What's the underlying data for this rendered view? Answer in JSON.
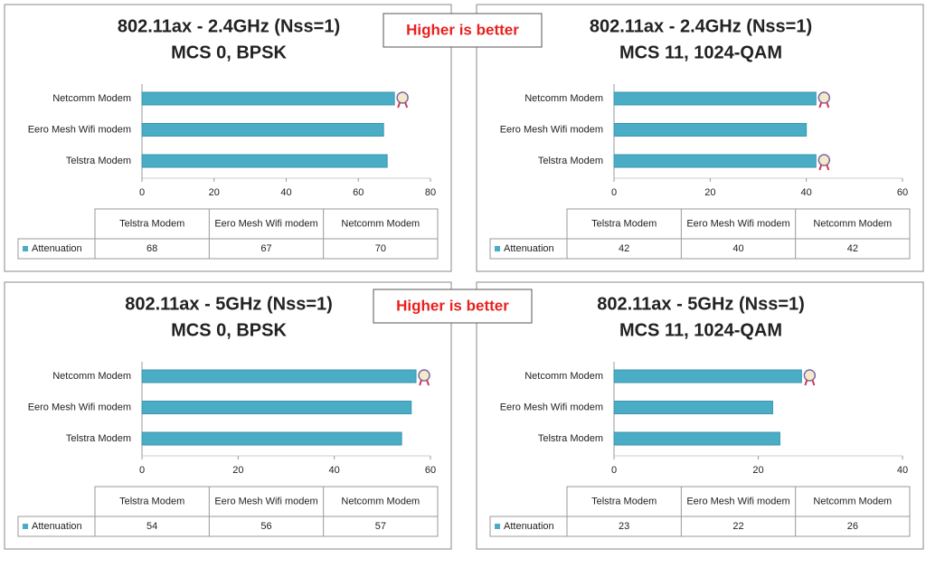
{
  "chart_data": [
    {
      "type": "bar",
      "orientation": "horizontal",
      "title": "802.11ax - 2.4GHz (Nss=1)",
      "subtitle": "MCS 0, BPSK",
      "annotation": "Higher is better",
      "categories": [
        "Telstra Modem",
        "Eero Mesh Wifi modem",
        "Netcomm Modem"
      ],
      "series": [
        {
          "name": "Attenuation",
          "color": "#4bacc6",
          "values": [
            68,
            67,
            70
          ]
        }
      ],
      "xlim": [
        0,
        80
      ],
      "xticks": [
        0,
        20,
        40,
        60,
        80
      ],
      "grid": false,
      "data_table": true
    },
    {
      "type": "bar",
      "orientation": "horizontal",
      "title": "802.11ax - 2.4GHz (Nss=1)",
      "subtitle": "MCS 11, 1024-QAM",
      "categories": [
        "Telstra Modem",
        "Eero Mesh Wifi modem",
        "Netcomm Modem"
      ],
      "series": [
        {
          "name": "Attenuation",
          "color": "#4bacc6",
          "values": [
            42,
            40,
            42
          ]
        }
      ],
      "xlim": [
        0,
        60
      ],
      "xticks": [
        0,
        20,
        40,
        60
      ],
      "grid": false,
      "data_table": true
    },
    {
      "type": "bar",
      "orientation": "horizontal",
      "title": "802.11ax - 5GHz (Nss=1)",
      "subtitle": "MCS 0, BPSK",
      "annotation": "Higher is better",
      "categories": [
        "Telstra Modem",
        "Eero Mesh Wifi modem",
        "Netcomm Modem"
      ],
      "series": [
        {
          "name": "Attenuation",
          "color": "#4bacc6",
          "values": [
            54,
            56,
            57
          ]
        }
      ],
      "xlim": [
        0,
        60
      ],
      "xticks": [
        0,
        20,
        40,
        60
      ],
      "grid": false,
      "data_table": true
    },
    {
      "type": "bar",
      "orientation": "horizontal",
      "title": "802.11ax - 5GHz (Nss=1)",
      "subtitle": "MCS 11, 1024-QAM",
      "categories": [
        "Telstra Modem",
        "Eero Mesh Wifi modem",
        "Netcomm Modem"
      ],
      "series": [
        {
          "name": "Attenuation",
          "color": "#4bacc6",
          "values": [
            23,
            22,
            26
          ]
        }
      ],
      "xlim": [
        0,
        40
      ],
      "xticks": [
        0,
        20,
        40
      ],
      "grid": false,
      "data_table": true
    }
  ]
}
